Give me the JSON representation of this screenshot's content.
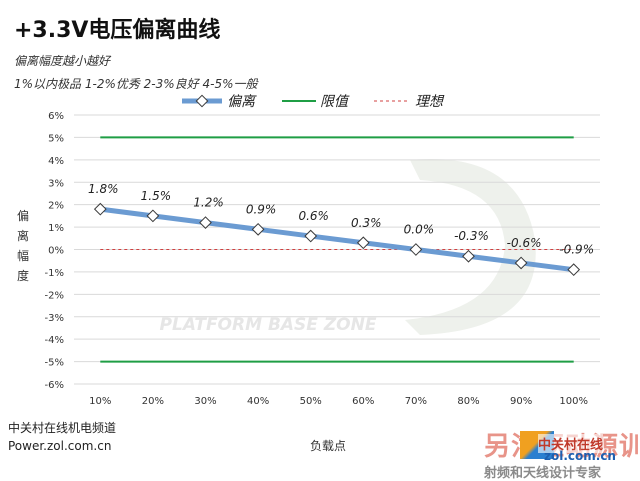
{
  "header": {
    "title": "+3.3V电压偏离曲线",
    "note1": "偏离幅度越小越好",
    "note2": "1%以内极品 1-2%优秀  2-3%良好 4-5%一般"
  },
  "source": {
    "line1": "中关村在线机电频道",
    "line2": "Power.zol.com.cn"
  },
  "watermark": {
    "text": "PLATFORM BASE ZONE",
    "badge_bg": "另沽驱动源训",
    "badge_name": "中关村在线",
    "badge_url": "zol.com.cn",
    "badge_sub": "射频和天线设计专家"
  },
  "colors": {
    "series": "#6b9bd2",
    "limit": "#1f9e45",
    "ideal": "#d04040",
    "grid": "#d9d9d9"
  },
  "chart_data": {
    "type": "line",
    "title": "+3.3V电压偏离曲线",
    "xlabel": "负载点",
    "ylabel": "偏离幅度",
    "categories": [
      "10%",
      "20%",
      "30%",
      "40%",
      "50%",
      "60%",
      "70%",
      "80%",
      "90%",
      "100%"
    ],
    "y_ticks": [
      "6%",
      "5%",
      "4%",
      "3%",
      "2%",
      "1%",
      "0%",
      "-1%",
      "-2%",
      "-3%",
      "-4%",
      "-5%",
      "-6%"
    ],
    "ylim": [
      -6,
      6
    ],
    "grid": true,
    "legend_position": "top",
    "series": [
      {
        "name": "偏离",
        "values": [
          1.8,
          1.5,
          1.2,
          0.9,
          0.6,
          0.3,
          0.0,
          -0.3,
          -0.6,
          -0.9
        ],
        "labels": [
          "1.8%",
          "1.5%",
          "1.2%",
          "0.9%",
          "0.6%",
          "0.3%",
          "0.0%",
          "-0.3%",
          "-0.6%",
          "-0.9%"
        ]
      },
      {
        "name": "限值",
        "values_upper": 5,
        "values_lower": -5
      },
      {
        "name": "理想",
        "value": 0
      }
    ]
  }
}
